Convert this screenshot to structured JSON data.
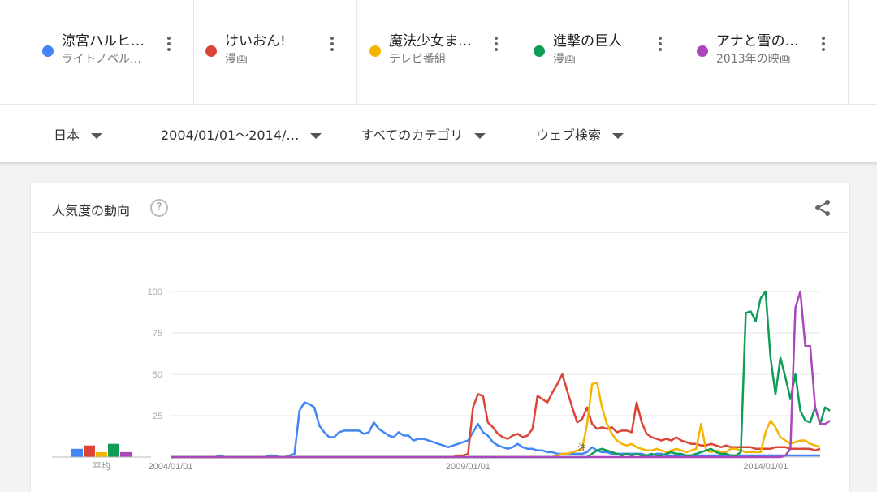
{
  "terms": [
    {
      "name": "涼宮ハルヒ…",
      "category": "ライトノベル…",
      "color": "#4285f4"
    },
    {
      "name": "けいおん!",
      "category": "漫画",
      "color": "#db4437"
    },
    {
      "name": "魔法少女ま…",
      "category": "テレビ番組",
      "color": "#f4b400"
    },
    {
      "name": "進撃の巨人",
      "category": "漫画",
      "color": "#0f9d58"
    },
    {
      "name": "アナと雪の…",
      "category": "2013年の映画",
      "color": "#ab47bc"
    }
  ],
  "filters": {
    "region": "日本",
    "date_range": "2004/01/01〜2014/…",
    "category": "すべてのカテゴリ",
    "search_type": "ウェブ検索"
  },
  "card": {
    "title": "人気度の動向",
    "help_glyph": "?"
  },
  "icons": {
    "more": "more-vert-icon",
    "dropdown": "caret-down-icon",
    "help": "help-circle-icon",
    "share": "share-icon"
  },
  "chart_data": {
    "type": "line",
    "ylim": [
      0,
      100
    ],
    "yticks": [
      100,
      75,
      50,
      25
    ],
    "x_start": "2004/01/01",
    "x_end": "2014/12/01",
    "xtick_labels": [
      "2004/01/01",
      "2009/01/01",
      "2014/01/01"
    ],
    "xticks": [
      0,
      60,
      120
    ],
    "note_label": "注",
    "note_x": 83,
    "average_label": "平均",
    "averages": [
      5,
      7,
      3,
      8,
      3
    ],
    "series": [
      {
        "name": "涼宮ハルヒ…",
        "color": "#4285f4",
        "values": [
          0,
          0,
          0,
          0,
          0,
          0,
          0,
          0,
          0,
          0,
          1,
          0,
          0,
          0,
          0,
          0,
          0,
          0,
          0,
          0,
          1,
          1,
          0,
          0,
          1,
          2,
          28,
          33,
          32,
          30,
          19,
          15,
          12,
          12,
          15,
          16,
          16,
          16,
          16,
          14,
          15,
          21,
          17,
          15,
          13,
          12,
          15,
          13,
          13,
          10,
          11,
          11,
          10,
          9,
          8,
          7,
          6,
          7,
          8,
          9,
          10,
          15,
          20,
          15,
          13,
          9,
          7,
          6,
          5,
          6,
          8,
          6,
          5,
          5,
          4,
          4,
          3,
          3,
          2,
          2,
          2,
          2,
          2,
          2,
          3,
          6,
          4,
          3,
          3,
          2,
          2,
          2,
          2,
          2,
          2,
          2,
          1,
          1,
          2,
          2,
          1,
          1,
          1,
          1,
          1,
          1,
          1,
          1,
          1,
          1,
          1,
          1,
          1,
          1,
          1,
          1,
          1,
          1,
          1,
          1,
          1,
          1,
          1,
          1,
          1,
          1,
          1,
          1,
          1,
          1,
          1,
          1
        ]
      },
      {
        "name": "けいおん!",
        "color": "#db4437",
        "values": [
          0,
          0,
          0,
          0,
          0,
          0,
          0,
          0,
          0,
          0,
          0,
          0,
          0,
          0,
          0,
          0,
          0,
          0,
          0,
          0,
          0,
          0,
          0,
          0,
          0,
          0,
          0,
          0,
          0,
          0,
          0,
          0,
          0,
          0,
          0,
          0,
          0,
          0,
          0,
          0,
          0,
          0,
          0,
          0,
          0,
          0,
          0,
          0,
          0,
          0,
          0,
          0,
          0,
          0,
          0,
          0,
          0,
          0,
          1,
          1,
          2,
          30,
          38,
          37,
          21,
          18,
          14,
          12,
          11,
          13,
          14,
          12,
          13,
          17,
          37,
          35,
          33,
          39,
          44,
          50,
          40,
          30,
          21,
          23,
          30,
          20,
          17,
          18,
          17,
          18,
          15,
          16,
          16,
          15,
          33,
          21,
          14,
          12,
          11,
          10,
          11,
          10,
          12,
          10,
          9,
          8,
          8,
          7,
          7,
          8,
          7,
          6,
          7,
          6,
          6,
          6,
          6,
          6,
          5,
          5,
          5,
          5,
          6,
          6,
          6,
          5,
          5,
          5,
          5,
          5,
          4,
          5
        ]
      },
      {
        "name": "魔法少女ま…",
        "color": "#f4b400",
        "values": [
          0,
          0,
          0,
          0,
          0,
          0,
          0,
          0,
          0,
          0,
          0,
          0,
          0,
          0,
          0,
          0,
          0,
          0,
          0,
          0,
          0,
          0,
          0,
          0,
          0,
          0,
          0,
          0,
          0,
          0,
          0,
          0,
          0,
          0,
          0,
          0,
          0,
          0,
          0,
          0,
          0,
          0,
          0,
          0,
          0,
          0,
          0,
          0,
          0,
          0,
          0,
          0,
          0,
          0,
          0,
          0,
          0,
          0,
          0,
          0,
          0,
          0,
          0,
          0,
          0,
          0,
          0,
          0,
          0,
          0,
          0,
          0,
          0,
          0,
          0,
          0,
          0,
          0,
          1,
          2,
          2,
          3,
          4,
          5,
          20,
          44,
          45,
          30,
          20,
          14,
          10,
          8,
          7,
          8,
          6,
          5,
          4,
          4,
          5,
          4,
          3,
          4,
          5,
          4,
          3,
          4,
          5,
          20,
          4,
          3,
          4,
          3,
          3,
          5,
          5,
          4,
          3,
          3,
          3,
          3,
          15,
          22,
          18,
          12,
          10,
          8,
          9,
          10,
          10,
          8,
          7,
          6
        ]
      },
      {
        "name": "進撃の巨人",
        "color": "#0f9d58",
        "values": [
          0,
          0,
          0,
          0,
          0,
          0,
          0,
          0,
          0,
          0,
          0,
          0,
          0,
          0,
          0,
          0,
          0,
          0,
          0,
          0,
          0,
          0,
          0,
          0,
          0,
          0,
          0,
          0,
          0,
          0,
          0,
          0,
          0,
          0,
          0,
          0,
          0,
          0,
          0,
          0,
          0,
          0,
          0,
          0,
          0,
          0,
          0,
          0,
          0,
          0,
          0,
          0,
          0,
          0,
          0,
          0,
          0,
          0,
          0,
          0,
          0,
          0,
          0,
          0,
          0,
          0,
          0,
          0,
          0,
          0,
          0,
          0,
          0,
          0,
          0,
          0,
          0,
          0,
          0,
          0,
          0,
          0,
          0,
          0,
          0,
          2,
          4,
          5,
          4,
          3,
          2,
          1,
          2,
          1,
          2,
          1,
          1,
          2,
          1,
          1,
          2,
          3,
          2,
          2,
          1,
          1,
          2,
          3,
          4,
          5,
          3,
          2,
          2,
          1,
          1,
          3,
          87,
          88,
          82,
          96,
          100,
          60,
          38,
          60,
          48,
          35,
          50,
          28,
          22,
          21,
          30,
          20,
          30,
          28
        ]
      },
      {
        "name": "アナと雪の…",
        "color": "#ab47bc",
        "values": [
          0,
          0,
          0,
          0,
          0,
          0,
          0,
          0,
          0,
          0,
          0,
          0,
          0,
          0,
          0,
          0,
          0,
          0,
          0,
          0,
          0,
          0,
          0,
          0,
          0,
          0,
          0,
          0,
          0,
          0,
          0,
          0,
          0,
          0,
          0,
          0,
          0,
          0,
          0,
          0,
          0,
          0,
          0,
          0,
          0,
          0,
          0,
          0,
          0,
          0,
          0,
          0,
          0,
          0,
          0,
          0,
          0,
          0,
          0,
          0,
          0,
          0,
          0,
          0,
          0,
          0,
          0,
          0,
          0,
          0,
          0,
          0,
          0,
          0,
          0,
          0,
          0,
          0,
          0,
          0,
          0,
          0,
          0,
          0,
          0,
          0,
          0,
          0,
          0,
          0,
          0,
          0,
          0,
          0,
          0,
          0,
          0,
          0,
          0,
          0,
          0,
          0,
          0,
          0,
          0,
          0,
          0,
          0,
          0,
          0,
          0,
          0,
          0,
          0,
          0,
          0,
          0,
          0,
          0,
          0,
          0,
          0,
          0,
          0,
          1,
          5,
          90,
          100,
          67,
          67,
          30,
          20,
          20,
          22
        ]
      }
    ]
  }
}
